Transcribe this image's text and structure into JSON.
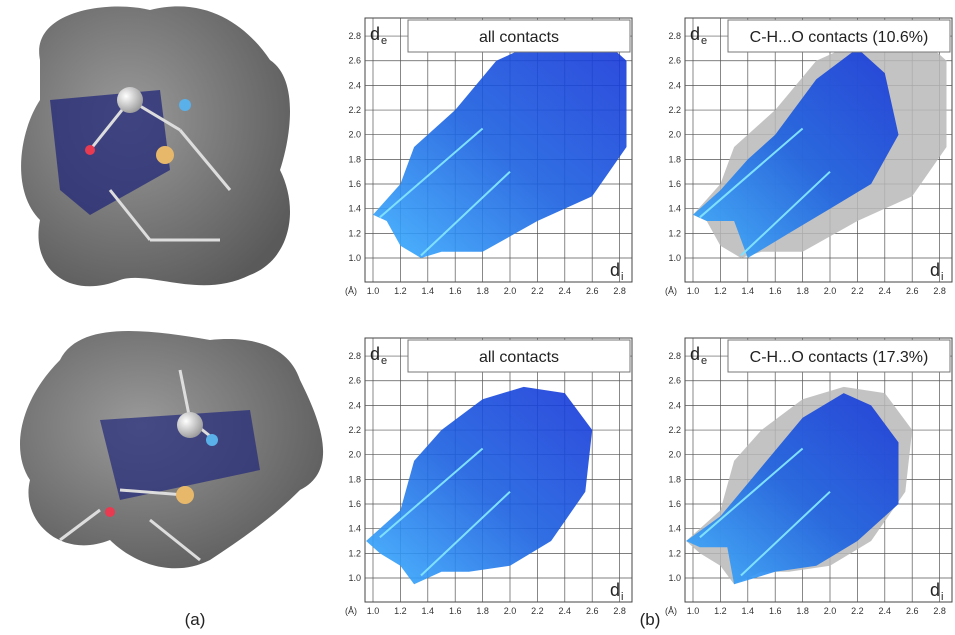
{
  "figure": {
    "label_a": "(a)",
    "label_b": "(b)",
    "plots": [
      {
        "title": "all contacts",
        "y_label": "d",
        "y_label_sub": "e",
        "x_label": "d",
        "x_label_sub": "i",
        "unit": "(Å)",
        "xticks": [
          "1.0",
          "1.2",
          "1.4",
          "1.6",
          "1.8",
          "2.0",
          "2.2",
          "2.4",
          "2.6",
          "2.8"
        ],
        "yticks": [
          "1.0",
          "1.2",
          "1.4",
          "1.6",
          "1.8",
          "2.0",
          "2.2",
          "2.4",
          "2.6",
          "2.8"
        ]
      },
      {
        "title": "C-H...O contacts (10.6%)",
        "y_label": "d",
        "y_label_sub": "e",
        "x_label": "d",
        "x_label_sub": "i",
        "unit": "(Å)",
        "xticks": [
          "1.0",
          "1.2",
          "1.4",
          "1.6",
          "1.8",
          "2.0",
          "2.2",
          "2.4",
          "2.6",
          "2.8"
        ],
        "yticks": [
          "1.0",
          "1.2",
          "1.4",
          "1.6",
          "1.8",
          "2.0",
          "2.2",
          "2.4",
          "2.6",
          "2.8"
        ]
      },
      {
        "title": "all contacts",
        "y_label": "d",
        "y_label_sub": "e",
        "x_label": "d",
        "x_label_sub": "i",
        "unit": "(Å)",
        "xticks": [
          "1.0",
          "1.2",
          "1.4",
          "1.6",
          "1.8",
          "2.0",
          "2.2",
          "2.4",
          "2.6",
          "2.8"
        ],
        "yticks": [
          "1.0",
          "1.2",
          "1.4",
          "1.6",
          "1.8",
          "2.0",
          "2.2",
          "2.4",
          "2.6",
          "2.8"
        ]
      },
      {
        "title": "C-H...O contacts (17.3%)",
        "y_label": "d",
        "y_label_sub": "e",
        "x_label": "d",
        "x_label_sub": "i",
        "unit": "(Å)",
        "xticks": [
          "1.0",
          "1.2",
          "1.4",
          "1.6",
          "1.8",
          "2.0",
          "2.2",
          "2.4",
          "2.6",
          "2.8"
        ],
        "yticks": [
          "1.0",
          "1.2",
          "1.4",
          "1.6",
          "1.8",
          "2.0",
          "2.2",
          "2.4",
          "2.6",
          "2.8"
        ]
      }
    ]
  }
}
